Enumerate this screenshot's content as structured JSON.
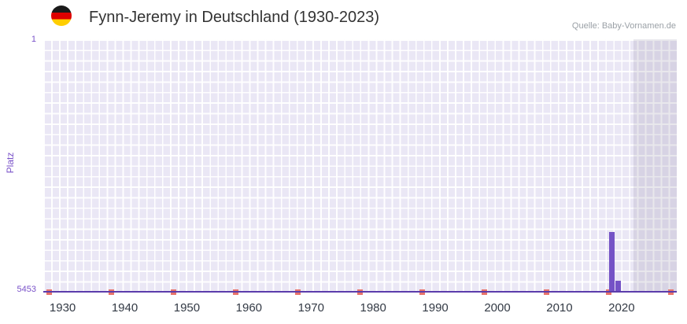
{
  "chart_data": {
    "type": "bar",
    "title": "Fynn-Jeremy in Deutschland (1930-2023)",
    "source": "Quelle: Baby-Vornamen.de",
    "ylabel": "Platz",
    "xlabel": "",
    "y_axis": {
      "min": 1,
      "max": 5453,
      "inverted": true,
      "tick_labels": [
        "1",
        "5453"
      ]
    },
    "x_axis": {
      "plot_min": 1929,
      "plot_max": 2031,
      "data_start": 1930,
      "data_end": 2023,
      "tick_years": [
        1930,
        1940,
        1950,
        1960,
        1970,
        1980,
        1990,
        2000,
        2010,
        2020
      ]
    },
    "series": [
      {
        "name": "Platz",
        "points": [
          {
            "year": 2020,
            "rank": 4160
          },
          {
            "year": 2021,
            "rank": 5215
          }
        ]
      }
    ],
    "decade_markers": {
      "years": [
        1930,
        1940,
        1950,
        1960,
        1970,
        1980,
        1990,
        2000,
        2010,
        2020,
        2030
      ]
    },
    "shaded_region": {
      "from_year": 2024,
      "to_year": 2031
    },
    "grid": true,
    "legend": false,
    "colors": {
      "bar": "#7452c6",
      "marker": "#e8736b",
      "plot_background": "#eae7f5",
      "grid_line": "#ffffff",
      "axis_line": "#5b3cab",
      "y_label_text": "#7a52c9",
      "x_label_text": "#333a45",
      "shade": "rgba(100,95,125,0.14)",
      "title_text": "#333333",
      "source_text": "#9aa0a6"
    },
    "flag": {
      "stripes": [
        "#1a1a1a",
        "#dd0000",
        "#ffce00"
      ]
    }
  }
}
